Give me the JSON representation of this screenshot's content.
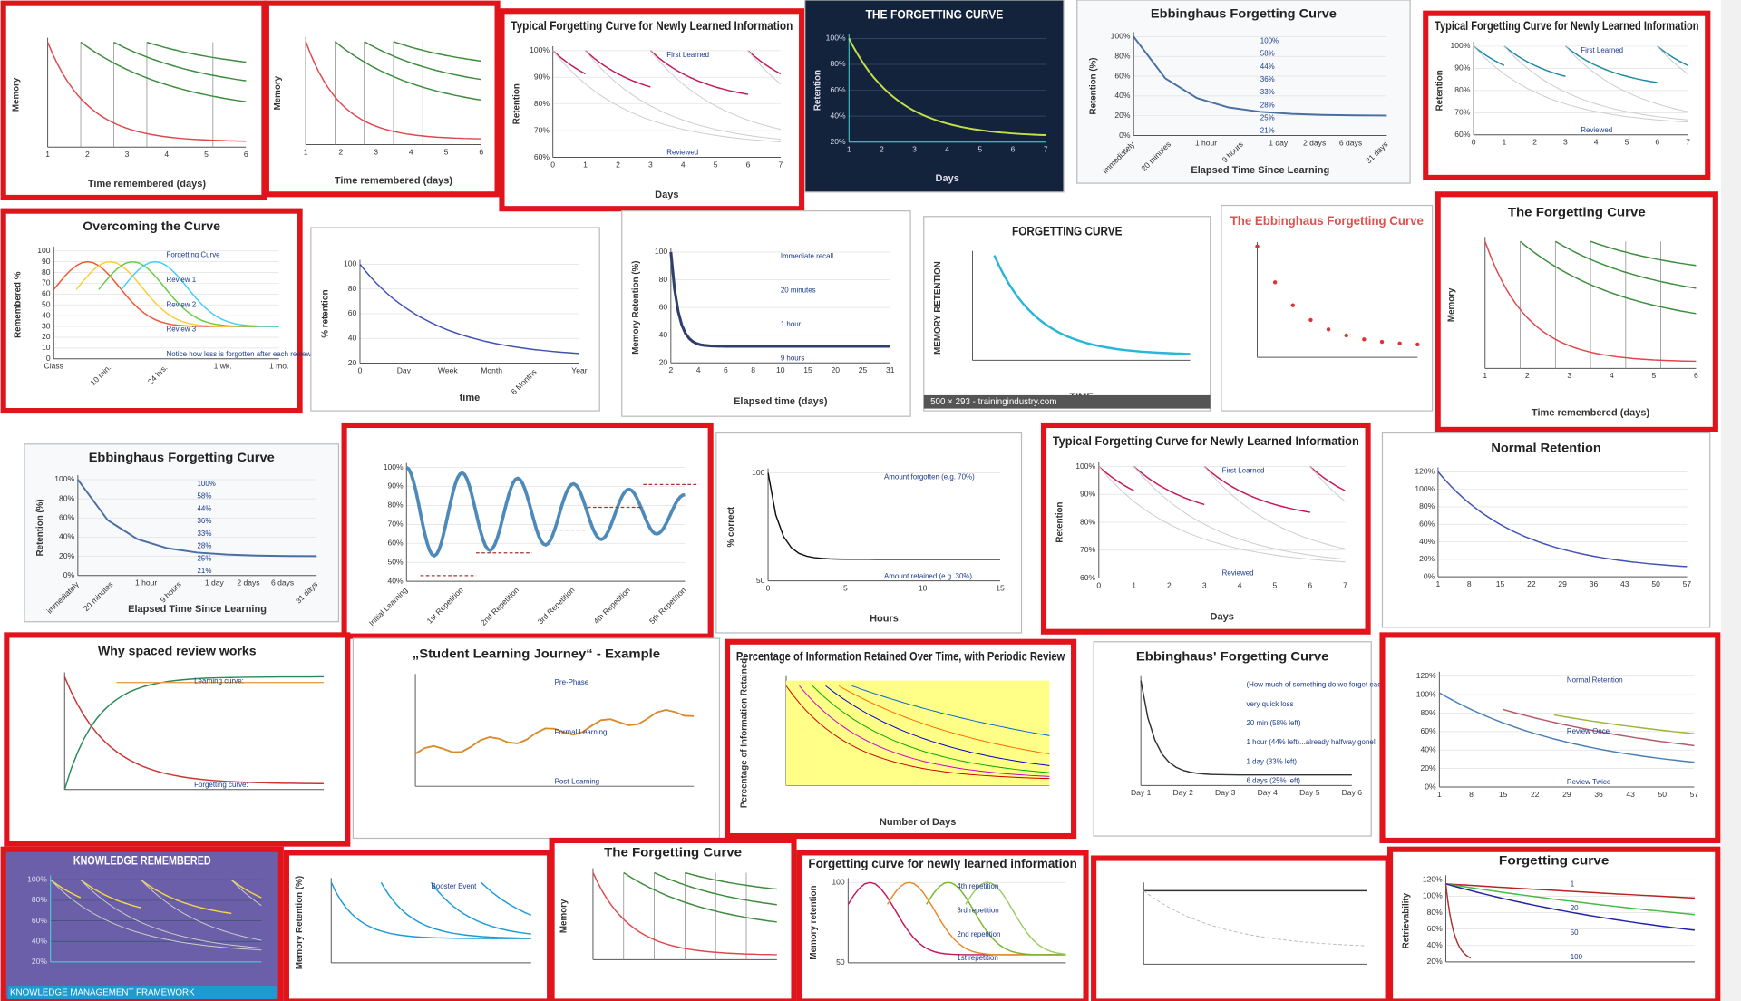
{
  "tiles": [
    {
      "y_label": "Memory",
      "x_ticks": [
        "1",
        "2",
        "3",
        "4",
        "5",
        "6"
      ],
      "x_label": "Time remembered (days)"
    },
    {
      "y_label": "Memory",
      "x_ticks": [
        "1",
        "2",
        "3",
        "4",
        "5",
        "6"
      ],
      "x_label": "Time remembered (days)"
    },
    {
      "title": "Typical Forgetting Curve for Newly Learned Information",
      "notes": [
        "First Learned",
        "Reviewed"
      ],
      "y_ticks": [
        "100%",
        "90%",
        "80%",
        "70%",
        "60%"
      ],
      "x_ticks": [
        "0",
        "1",
        "2",
        "3",
        "4",
        "5",
        "6",
        "7"
      ],
      "x_label": "Days",
      "y_label": "Retention"
    },
    {
      "title": "THE FORGETTING CURVE",
      "y_ticks": [
        "100%",
        "80%",
        "60%",
        "40%",
        "20%"
      ],
      "x_ticks": [
        "1",
        "2",
        "3",
        "4",
        "5",
        "6",
        "7"
      ],
      "x_label": "Days",
      "y_label": "Retention"
    },
    {
      "title": "Ebbinghaus Forgetting Curve",
      "y_ticks": [
        "100%",
        "80%",
        "60%",
        "40%",
        "20%",
        "0%"
      ],
      "notes": [
        "100%",
        "58%",
        "44%",
        "36%",
        "33%",
        "28%",
        "25%",
        "21%"
      ],
      "x_ticks": [
        "immediately",
        "20 minutes",
        "1 hour",
        "9 hours",
        "1 day",
        "2 days",
        "6 days",
        "31 days"
      ],
      "x_label": "Elapsed Time Since Learning",
      "y_label": "Retention (%)"
    },
    {
      "title": "Typical Forgetting Curve for Newly Learned Information",
      "notes": [
        "First Learned",
        "Reviewed"
      ],
      "y_ticks": [
        "100%",
        "90%",
        "80%",
        "70%",
        "60%"
      ],
      "x_ticks": [
        "0",
        "1",
        "2",
        "3",
        "4",
        "5",
        "6",
        "7"
      ],
      "y_label": "Retention"
    },
    {
      "title": "Overcoming the Curve",
      "y_ticks": [
        "100",
        "90",
        "80",
        "70",
        "60",
        "50",
        "40",
        "30",
        "20",
        "10",
        "0"
      ],
      "x_ticks": [
        "Class",
        "10 min.",
        "24 hrs.",
        "1 wk.",
        "1 mo."
      ],
      "notes": [
        "Forgetting Curve",
        "Review 1",
        "Review 2",
        "Review 3",
        "Notice how less is forgotten after each review!!"
      ],
      "y_label": "Remembered %"
    },
    {
      "y_ticks": [
        "100",
        "80",
        "60",
        "40",
        "20"
      ],
      "x_ticks": [
        "0",
        "Day",
        "Week",
        "Month",
        "6 Months",
        "Year"
      ],
      "x_label": "time",
      "y_label": "% retention"
    },
    {
      "y_ticks": [
        "100",
        "80",
        "60",
        "40",
        "20"
      ],
      "x_ticks": [
        "2",
        "4",
        "6",
        "8",
        "10",
        "15",
        "20",
        "25",
        "31"
      ],
      "x_label": "Elapsed time (days)",
      "y_label": "Memory Retention (%)",
      "notes": [
        "Immediate recall",
        "20 minutes",
        "1 hour",
        "9 hours"
      ]
    },
    {
      "title": "FORGETTING CURVE",
      "y_label": "MEMORY RETENTION",
      "x_label": "TIME",
      "caption": "500 × 293 - trainingindustry.com"
    },
    {
      "title": "The Ebbinghaus Forgetting Curve"
    },
    {
      "title": "The Forgetting Curve",
      "y_label": "Memory",
      "x_ticks": [
        "1",
        "2",
        "3",
        "4",
        "5",
        "6"
      ],
      "x_label": "Time remembered (days)"
    },
    {
      "title": "Ebbinghaus Forgetting Curve",
      "y_ticks": [
        "100%",
        "80%",
        "60%",
        "40%",
        "20%",
        "0%"
      ],
      "notes": [
        "100%",
        "58%",
        "44%",
        "36%",
        "33%",
        "28%",
        "25%",
        "21%"
      ],
      "x_ticks": [
        "immediately",
        "20 minutes",
        "1 hour",
        "9 hours",
        "1 day",
        "2 days",
        "6 days",
        "31 days"
      ],
      "x_label": "Elapsed Time Since Learning",
      "y_label": "Retention (%)"
    },
    {
      "y_ticks": [
        "100%",
        "90%",
        "80%",
        "70%",
        "60%",
        "50%",
        "40%"
      ],
      "x_ticks": [
        "Initial Learning",
        "1st Repetition",
        "2nd Repetition",
        "3rd Repetition",
        "4th Repetition",
        "5th Repetition"
      ]
    },
    {
      "y_ticks": [
        "100",
        "50"
      ],
      "y_label": "% correct",
      "x_ticks": [
        "0",
        "5",
        "10",
        "15"
      ],
      "x_label": "Hours",
      "notes": [
        "Amount forgotten (e.g. 70%)",
        "Amount retained (e.g. 30%)"
      ]
    },
    {
      "title": "Typical Forgetting Curve for Newly Learned Information",
      "notes": [
        "First Learned",
        "Reviewed"
      ],
      "y_ticks": [
        "100%",
        "90%",
        "80%",
        "70%",
        "60%"
      ],
      "x_ticks": [
        "0",
        "1",
        "2",
        "3",
        "4",
        "5",
        "6",
        "7"
      ],
      "x_label": "Days",
      "y_label": "Retention"
    },
    {
      "title": "Normal Retention",
      "y_ticks": [
        "120%",
        "100%",
        "80%",
        "60%",
        "40%",
        "20%",
        "0%"
      ],
      "x_ticks": [
        "1",
        "8",
        "15",
        "22",
        "29",
        "36",
        "43",
        "50",
        "57"
      ]
    },
    {
      "title": "Why spaced review works",
      "notes": [
        "Learning curve:",
        "Forgetting curve:"
      ]
    },
    {
      "title": "„Student Learning Journey“ - Example",
      "notes": [
        "Pre-Phase",
        "Formal Learning",
        "Post-Learning"
      ]
    },
    {
      "title": "Percentage of Information Retained Over Time, with Periodic Review",
      "y_label": "Percentage of Information Retained",
      "x_label": "Number of Days"
    },
    {
      "title": "Ebbinghaus' Forgetting Curve",
      "notes": [
        "(How much of something do we forget each day?)",
        "very quick loss",
        "20 min (58% left)",
        "1 hour (44% left)...already halfway gone!",
        "1 day (33% left)",
        "6 days (25% left)"
      ],
      "x_ticks": [
        "Day 1",
        "Day 2",
        "Day 3",
        "Day 4",
        "Day 5",
        "Day 6"
      ]
    },
    {
      "y_ticks": [
        "120%",
        "100%",
        "80%",
        "60%",
        "40%",
        "20%",
        "0%"
      ],
      "x_ticks": [
        "1",
        "8",
        "15",
        "22",
        "29",
        "36",
        "43",
        "50",
        "57"
      ],
      "notes": [
        "Normal Retention",
        "Review Once",
        "Review Twice"
      ]
    },
    {
      "title": "KNOWLEDGE REMEMBERED",
      "y_ticks": [
        "100%",
        "80%",
        "60%",
        "40%",
        "20%"
      ],
      "caption": "KNOWLEDGE MANAGEMENT FRAMEWORK"
    },
    {
      "y_label": "Memory Retention (%)",
      "notes": [
        "Booster Event"
      ]
    },
    {
      "title": "The Forgetting Curve",
      "y_label": "Memory"
    },
    {
      "title": "Forgetting curve for newly learned information",
      "y_label": "Memory retention",
      "y_ticks": [
        "100",
        "50"
      ],
      "notes": [
        "4th repetition",
        "3rd repetition",
        "2nd repetition",
        "1st repetition"
      ]
    },
    {},
    {
      "title": "Forgetting curve",
      "y_label": "Retrievability",
      "y_ticks": [
        "120%",
        "100%",
        "80%",
        "60%",
        "40%",
        "20%"
      ],
      "notes": [
        "1",
        "20",
        "50",
        "100"
      ]
    }
  ]
}
